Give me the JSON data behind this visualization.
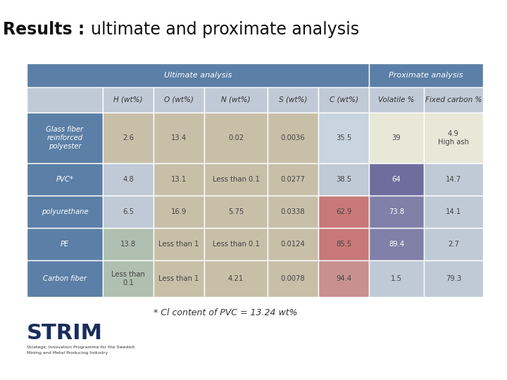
{
  "title_bold": "Results : ",
  "title_normal": "ultimate and proximate analysis",
  "header1_text": "Ultimate analysis",
  "header2_text": "Proximate analysis",
  "col_headers": [
    "H (wt%)",
    "O (wt%)",
    "N (wt%)",
    "S (wt%)",
    "C (wt%)",
    "Volatile %",
    "Fixed carbon %"
  ],
  "row_labels": [
    "Glass fiber\nreinforced\npolyester",
    "PVC*",
    "polyurethane",
    "PE",
    "Carbon fiber"
  ],
  "table_data": [
    [
      "2.6",
      "13.4",
      "0.02",
      "0.0036",
      "35.5",
      "39",
      "4.9\nHigh ash"
    ],
    [
      "4.8",
      "13.1",
      "Less than 0.1",
      "0.0277",
      "38.5",
      "64",
      "14.7"
    ],
    [
      "6.5",
      "16.9",
      "5.75",
      "0.0338",
      "62.9",
      "73.8",
      "14.1"
    ],
    [
      "13.8",
      "Less than 1",
      "Less than 0.1",
      "0.0124",
      "85.5",
      "89.4",
      "2.7"
    ],
    [
      "Less than\n0.1",
      "Less than 1",
      "4.21",
      "0.0078",
      "94.4",
      "1.5",
      "79.3"
    ]
  ],
  "footnote": "* Cl content of PVC = 13.24 wt%",
  "header_bg": "#5b7fa6",
  "header_text": "#ffffff",
  "col_header_bg": "#c0cad6",
  "row_label_bg": "#5b7fa6",
  "row_label_text": "#ffffff",
  "bg_color": "#ffffff",
  "cell_colors": [
    [
      "#c8bfa8",
      "#c8bfa8",
      "#c8bfa8",
      "#c8bfa8",
      "#c8d4e0",
      "#e8e8d8",
      "#e8e8d8"
    ],
    [
      "#c0cad6",
      "#c8bfa8",
      "#c8bfa8",
      "#c8bfa8",
      "#c0cad6",
      "#6e6e9e",
      "#c0cad6"
    ],
    [
      "#c0cad6",
      "#c8bfa8",
      "#c8bfa8",
      "#c8bfa8",
      "#c87878",
      "#8080a8",
      "#c0cad6"
    ],
    [
      "#b0c0b0",
      "#c8bfa8",
      "#c8bfa8",
      "#c8bfa8",
      "#c87878",
      "#8080a8",
      "#c0cad6"
    ],
    [
      "#b0c0b0",
      "#c8bfa8",
      "#c8bfa8",
      "#c8bfa8",
      "#c89090",
      "#c0cad6",
      "#c0cad6"
    ]
  ],
  "col_text_colors": [
    [
      "#444444",
      "#444444",
      "#444444",
      "#444444",
      "#444444",
      "#444444",
      "#444444"
    ],
    [
      "#444444",
      "#444444",
      "#444444",
      "#444444",
      "#444444",
      "#ffffff",
      "#444444"
    ],
    [
      "#444444",
      "#444444",
      "#444444",
      "#444444",
      "#444444",
      "#ffffff",
      "#444444"
    ],
    [
      "#444444",
      "#444444",
      "#444444",
      "#444444",
      "#444444",
      "#ffffff",
      "#444444"
    ],
    [
      "#444444",
      "#444444",
      "#444444",
      "#444444",
      "#444444",
      "#444444",
      "#444444"
    ]
  ]
}
